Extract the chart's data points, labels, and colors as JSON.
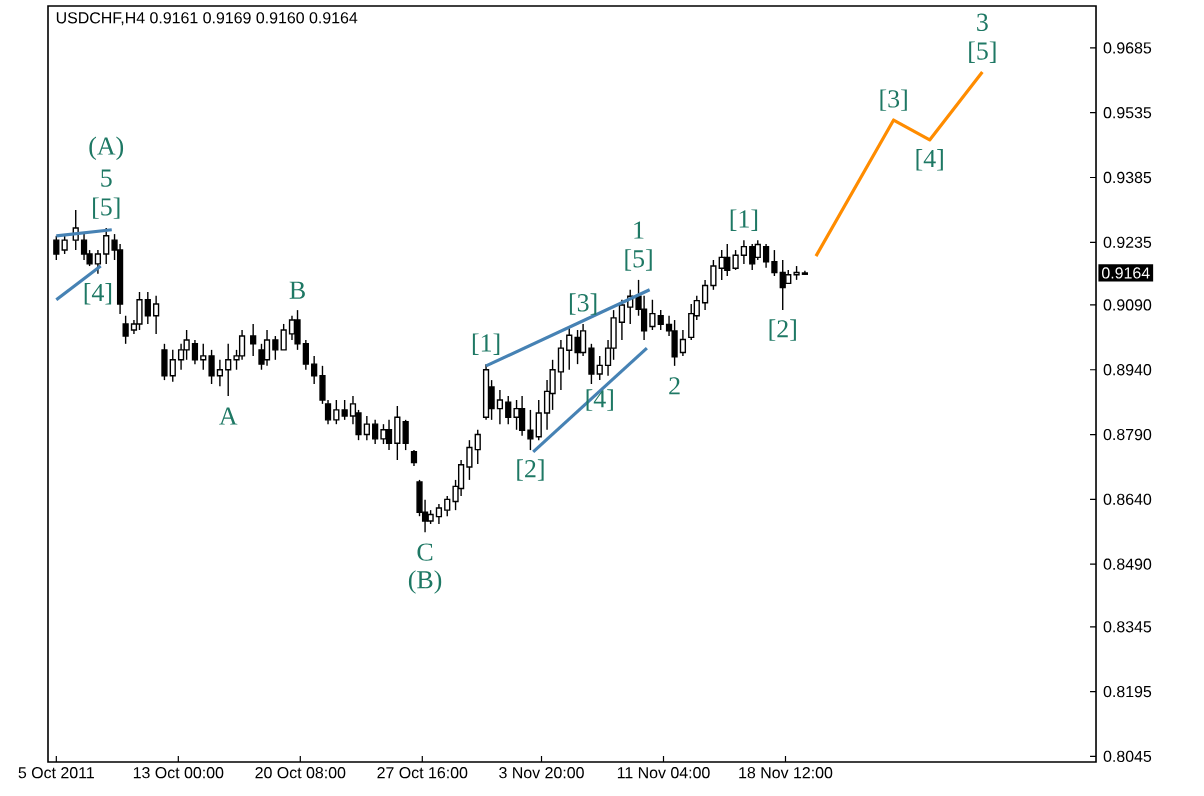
{
  "chart_data": {
    "type": "candlestick",
    "title": "USDCHF,H4  0.9161 0.9169 0.9160 0.9164",
    "color": "#000000",
    "x": [
      "2011-10-05T16:00",
      "2011-10-06T04:00",
      "2011-10-06T20:00",
      "2011-10-07T08:00",
      "2011-10-07T16:00",
      "2011-10-08T04:00",
      "2011-10-08T16:00",
      "2011-10-09T04:00",
      "2011-10-09T12:00",
      "2011-10-09T20:00",
      "2011-10-10T08:00",
      "2011-10-10T16:00",
      "2011-10-11T04:00",
      "2011-10-11T16:00",
      "2011-10-12T04:00",
      "2011-10-12T16:00",
      "2011-10-13T04:00",
      "2011-10-13T12:00",
      "2011-10-14T00:00",
      "2011-10-14T12:00",
      "2011-10-15T00:00",
      "2011-10-15T12:00",
      "2011-10-16T00:00",
      "2011-10-16T12:00",
      "2011-10-16T20:00",
      "2011-10-17T12:00",
      "2011-10-18T00:00",
      "2011-10-18T08:00",
      "2011-10-18T20:00",
      "2011-10-19T08:00",
      "2011-10-19T20:00",
      "2011-10-20T04:00",
      "2011-10-20T16:00",
      "2011-10-21T04:00",
      "2011-10-21T16:00",
      "2011-10-22T00:00",
      "2011-10-22T12:00",
      "2011-10-23T00:00",
      "2011-10-23T12:00",
      "2011-10-23T20:00",
      "2011-10-24T08:00",
      "2011-10-24T20:00",
      "2011-10-25T08:00",
      "2011-10-25T16:00",
      "2011-10-26T04:00",
      "2011-10-26T16:00",
      "2011-10-27T04:00",
      "2011-10-27T12:00",
      "2011-10-27T20:00",
      "2011-10-28T04:00",
      "2011-10-28T16:00",
      "2011-10-29T04:00",
      "2011-10-29T16:00",
      "2011-10-30T00:00",
      "2011-10-30T12:00",
      "2011-10-31T00:00",
      "2011-10-31T12:00",
      "2011-10-31T20:00",
      "2011-11-01T08:00",
      "2011-11-01T20:00",
      "2011-11-02T08:00",
      "2011-11-02T16:00",
      "2011-11-03T04:00",
      "2011-11-03T16:00",
      "2011-11-04T04:00",
      "2011-11-04T12:00",
      "2011-11-05T00:00",
      "2011-11-05T12:00",
      "2011-11-06T00:00",
      "2011-11-06T08:00",
      "2011-11-06T20:00",
      "2011-11-07T08:00",
      "2011-11-07T20:00",
      "2011-11-08T04:00",
      "2011-11-08T16:00",
      "2011-11-09T04:00",
      "2011-11-09T16:00",
      "2011-11-10T00:00",
      "2011-11-10T12:00",
      "2011-11-11T00:00",
      "2011-11-11T12:00",
      "2011-11-11T20:00",
      "2011-11-12T08:00",
      "2011-11-12T20:00",
      "2011-11-13T04:00",
      "2011-11-13T16:00",
      "2011-11-14T04:00",
      "2011-11-14T16:00",
      "2011-11-15T00:00",
      "2011-11-15T12:00",
      "2011-11-16T00:00",
      "2011-11-16T12:00",
      "2011-11-16T20:00",
      "2011-11-17T08:00",
      "2011-11-17T20:00",
      "2011-11-18T08:00",
      "2011-11-18T16:00",
      "2011-11-19T04:00",
      "2011-11-19T16:00"
    ],
    "ohlc": [
      [
        0.924,
        0.925,
        0.9194,
        0.9208
      ],
      [
        0.9217,
        0.9254,
        0.9208,
        0.924
      ],
      [
        0.924,
        0.931,
        0.9217,
        0.9268
      ],
      [
        0.924,
        0.9254,
        0.9194,
        0.9208
      ],
      [
        0.9208,
        0.9217,
        0.918,
        0.9185
      ],
      [
        0.9185,
        0.9217,
        0.9162,
        0.9208
      ],
      [
        0.9208,
        0.9268,
        0.9185,
        0.925
      ],
      [
        0.924,
        0.9254,
        0.9194,
        0.9217
      ],
      [
        0.9217,
        0.9231,
        0.9069,
        0.9092
      ],
      [
        0.9046,
        0.9065,
        0.9,
        0.9018
      ],
      [
        0.9032,
        0.9055,
        0.9023,
        0.9046
      ],
      [
        0.9046,
        0.912,
        0.9032,
        0.9102
      ],
      [
        0.9102,
        0.912,
        0.9046,
        0.9065
      ],
      [
        0.9065,
        0.9111,
        0.9023,
        0.9092
      ],
      [
        0.8986,
        0.9,
        0.8916,
        0.8926
      ],
      [
        0.8926,
        0.8986,
        0.8912,
        0.8963
      ],
      [
        0.8963,
        0.9,
        0.894,
        0.8986
      ],
      [
        0.8986,
        0.9032,
        0.8963,
        0.9009
      ],
      [
        0.9,
        0.9009,
        0.8953,
        0.8963
      ],
      [
        0.8963,
        0.9,
        0.894,
        0.8972
      ],
      [
        0.8972,
        0.8986,
        0.8907,
        0.8926
      ],
      [
        0.8926,
        0.8963,
        0.8902,
        0.894
      ],
      [
        0.894,
        0.9,
        0.8879,
        0.8963
      ],
      [
        0.8963,
        0.8986,
        0.894,
        0.8972
      ],
      [
        0.8972,
        0.9032,
        0.8963,
        0.9018
      ],
      [
        0.9018,
        0.9046,
        0.8972,
        0.9
      ],
      [
        0.8986,
        0.9,
        0.894,
        0.8953
      ],
      [
        0.8963,
        0.9032,
        0.8949,
        0.9009
      ],
      [
        0.9009,
        0.9018,
        0.8963,
        0.8986
      ],
      [
        0.8986,
        0.9046,
        0.8986,
        0.9032
      ],
      [
        0.9023,
        0.9065,
        0.9009,
        0.9055
      ],
      [
        0.9055,
        0.9078,
        0.8986,
        0.9
      ],
      [
        0.9,
        0.9009,
        0.894,
        0.8953
      ],
      [
        0.8953,
        0.8972,
        0.8907,
        0.8926
      ],
      [
        0.8926,
        0.8949,
        0.8861,
        0.887
      ],
      [
        0.8861,
        0.887,
        0.8814,
        0.8824
      ],
      [
        0.8824,
        0.887,
        0.8814,
        0.8847
      ],
      [
        0.8847,
        0.887,
        0.8824,
        0.8833
      ],
      [
        0.8833,
        0.8879,
        0.8814,
        0.8861
      ],
      [
        0.884,
        0.8847,
        0.8777,
        0.879
      ],
      [
        0.879,
        0.8833,
        0.8777,
        0.8814
      ],
      [
        0.8814,
        0.8824,
        0.8768,
        0.878
      ],
      [
        0.878,
        0.8814,
        0.8768,
        0.8801
      ],
      [
        0.8801,
        0.8824,
        0.8754,
        0.877
      ],
      [
        0.877,
        0.8856,
        0.8731,
        0.883
      ],
      [
        0.882,
        0.8824,
        0.8754,
        0.877
      ],
      [
        0.875,
        0.8754,
        0.8717,
        0.8725
      ],
      [
        0.868,
        0.8685,
        0.8601,
        0.861
      ],
      [
        0.861,
        0.8639,
        0.8564,
        0.859
      ],
      [
        0.859,
        0.8615,
        0.8583,
        0.8605
      ],
      [
        0.86,
        0.8629,
        0.8583,
        0.862
      ],
      [
        0.8615,
        0.8648,
        0.8601,
        0.864
      ],
      [
        0.8635,
        0.8685,
        0.8615,
        0.867
      ],
      [
        0.8665,
        0.8731,
        0.8648,
        0.872
      ],
      [
        0.8715,
        0.8777,
        0.8685,
        0.876
      ],
      [
        0.8755,
        0.8801,
        0.8722,
        0.879
      ],
      [
        0.883,
        0.8953,
        0.8824,
        0.894
      ],
      [
        0.89,
        0.8916,
        0.8824,
        0.885
      ],
      [
        0.885,
        0.8893,
        0.8814,
        0.887
      ],
      [
        0.8865,
        0.8879,
        0.8814,
        0.883
      ],
      [
        0.883,
        0.887,
        0.8801,
        0.885
      ],
      [
        0.885,
        0.8879,
        0.8787,
        0.88
      ],
      [
        0.88,
        0.8847,
        0.8754,
        0.878
      ],
      [
        0.8785,
        0.887,
        0.8777,
        0.884
      ],
      [
        0.884,
        0.8916,
        0.8801,
        0.889
      ],
      [
        0.8885,
        0.8963,
        0.8847,
        0.894
      ],
      [
        0.8935,
        0.9009,
        0.8893,
        0.899
      ],
      [
        0.8985,
        0.9041,
        0.894,
        0.902
      ],
      [
        0.9015,
        0.9032,
        0.8953,
        0.898
      ],
      [
        0.898,
        0.9046,
        0.8972,
        0.903
      ],
      [
        0.899,
        0.9,
        0.8907,
        0.893
      ],
      [
        0.893,
        0.8972,
        0.8916,
        0.895
      ],
      [
        0.895,
        0.9009,
        0.8926,
        0.899
      ],
      [
        0.899,
        0.9078,
        0.8963,
        0.906
      ],
      [
        0.905,
        0.9102,
        0.9009,
        0.909
      ],
      [
        0.9085,
        0.9125,
        0.9046,
        0.911
      ],
      [
        0.911,
        0.9148,
        0.9065,
        0.908
      ],
      [
        0.908,
        0.9111,
        0.9009,
        0.903
      ],
      [
        0.904,
        0.9102,
        0.9032,
        0.907
      ],
      [
        0.9065,
        0.9078,
        0.9032,
        0.9045
      ],
      [
        0.9045,
        0.9065,
        0.9018,
        0.903
      ],
      [
        0.903,
        0.9055,
        0.8949,
        0.897
      ],
      [
        0.898,
        0.9032,
        0.8972,
        0.901
      ],
      [
        0.9015,
        0.9092,
        0.9009,
        0.907
      ],
      [
        0.9065,
        0.9111,
        0.9055,
        0.91
      ],
      [
        0.9095,
        0.9148,
        0.9078,
        0.9135
      ],
      [
        0.9135,
        0.9194,
        0.9125,
        0.918
      ],
      [
        0.9175,
        0.9217,
        0.9148,
        0.92
      ],
      [
        0.92,
        0.9231,
        0.9157,
        0.917
      ],
      [
        0.9175,
        0.9217,
        0.9171,
        0.9205
      ],
      [
        0.9205,
        0.924,
        0.9185,
        0.9225
      ],
      [
        0.9225,
        0.9231,
        0.9171,
        0.9185
      ],
      [
        0.92,
        0.924,
        0.9194,
        0.923
      ],
      [
        0.9225,
        0.9231,
        0.9176,
        0.919
      ],
      [
        0.919,
        0.9217,
        0.9157,
        0.9165
      ],
      [
        0.9165,
        0.9194,
        0.9078,
        0.913
      ],
      [
        0.914,
        0.9171,
        0.9139,
        0.916
      ],
      [
        0.916,
        0.918,
        0.9148,
        0.9165
      ],
      [
        0.9161,
        0.9169,
        0.916,
        0.9164
      ]
    ],
    "series": [
      {
        "type": "line",
        "color": "#ff8c00",
        "x": [
          "2011-11-20T08:00",
          "2011-11-25T00:00",
          "2011-11-27T04:00",
          "2011-11-30T08:00"
        ],
        "values": [
          0.9203,
          0.9518,
          0.9472,
          0.9629
        ]
      },
      {
        "type": "line",
        "color": "#4682b4",
        "x": [
          "2011-10-05T16:00",
          "2011-10-09T00:00"
        ],
        "values": [
          0.925,
          0.9264
        ]
      },
      {
        "type": "line",
        "color": "#4682b4",
        "x": [
          "2011-10-05T16:00",
          "2011-10-08T08:00"
        ],
        "values": [
          0.9102,
          0.918
        ]
      },
      {
        "type": "line",
        "color": "#4682b4",
        "x": [
          "2011-10-31T12:00",
          "2011-11-10T08:00"
        ],
        "values": [
          0.8949,
          0.9125
        ]
      },
      {
        "type": "line",
        "color": "#4682b4",
        "x": [
          "2011-11-03T08:00",
          "2011-11-10T04:00"
        ],
        "values": [
          0.875,
          0.899
        ]
      }
    ],
    "xlim": [
      "2011-10-05T04:00",
      "2011-12-07T04:00"
    ],
    "xticks": [
      {
        "value": "2011-10-05T16:00",
        "label": "5 Oct 2011"
      },
      {
        "value": "2011-10-13T00:00",
        "label": "13 Oct 00:00"
      },
      {
        "value": "2011-10-20T08:00",
        "label": "20 Oct 08:00"
      },
      {
        "value": "2011-10-27T16:00",
        "label": "27 Oct 16:00"
      },
      {
        "value": "2011-11-03T20:00",
        "label": "3 Nov 20:00"
      },
      {
        "value": "2011-11-11T04:00",
        "label": "11 Nov 04:00"
      },
      {
        "value": "2011-11-18T12:00",
        "label": "18 Nov 12:00"
      }
    ],
    "ylim": [
      0.8032,
      0.9782
    ],
    "yticks": [
      0.9685,
      0.9535,
      0.9385,
      0.9235,
      {
        "value": 0.909,
        "label": "0.9090"
      },
      {
        "value": 0.894,
        "label": "0.8940"
      },
      {
        "value": 0.879,
        "label": "0.8790"
      },
      {
        "value": 0.864,
        "label": "0.8640"
      },
      {
        "value": 0.849,
        "label": "0.8490"
      },
      0.8345,
      0.8195,
      0.8045
    ],
    "annotations": [
      {
        "text": "[5]",
        "x": "2011-10-08T16:00",
        "y": 0.9268
      },
      {
        "text": "5",
        "x": "2011-10-08T16:00",
        "y": 0.9268
      },
      {
        "text": "(A)",
        "x": "2011-10-08T16:00",
        "y": 0.9268
      },
      {
        "text": "[4]",
        "x": "2011-10-08T04:00",
        "y": 0.9162
      },
      {
        "text": "A",
        "x": "2011-10-16T00:00",
        "y": 0.8879
      },
      {
        "text": "B",
        "x": "2011-10-20T04:00",
        "y": 0.9078
      },
      {
        "text": "C",
        "x": "2011-10-27T20:00",
        "y": 0.8564
      },
      {
        "text": "(B)",
        "x": "2011-10-27T20:00",
        "y": 0.8564
      },
      {
        "text": "[1]",
        "x": "2011-10-31T12:00",
        "y": 0.8953
      },
      {
        "text": "[2]",
        "x": "2011-11-03T04:00",
        "y": 0.8754
      },
      {
        "text": "[3]",
        "x": "2011-11-06T08:00",
        "y": 0.9046
      },
      {
        "text": "[4]",
        "x": "2011-11-07T08:00",
        "y": 0.8916
      },
      {
        "text": "[5]",
        "x": "2011-11-09T16:00",
        "y": 0.9148
      },
      {
        "text": "1",
        "x": "2011-11-09T16:00",
        "y": 0.9148
      },
      {
        "text": "2",
        "x": "2011-11-11T20:00",
        "y": 0.8949
      },
      {
        "text": "[1]",
        "x": "2011-11-16T00:00",
        "y": 0.924
      },
      {
        "text": "[2]",
        "x": "2011-11-18T08:00",
        "y": 0.9078
      },
      {
        "text": "[3]",
        "x": "2011-11-25T00:00",
        "y": 0.9518
      },
      {
        "text": "[4]",
        "x": "2011-11-27T04:00",
        "y": 0.9472
      },
      {
        "text": "[5]",
        "x": "2011-11-30T08:00",
        "y": 0.9629
      },
      {
        "text": "3",
        "x": "2011-11-30T08:00",
        "y": 0.9629
      },
      "0.9164"
    ]
  }
}
